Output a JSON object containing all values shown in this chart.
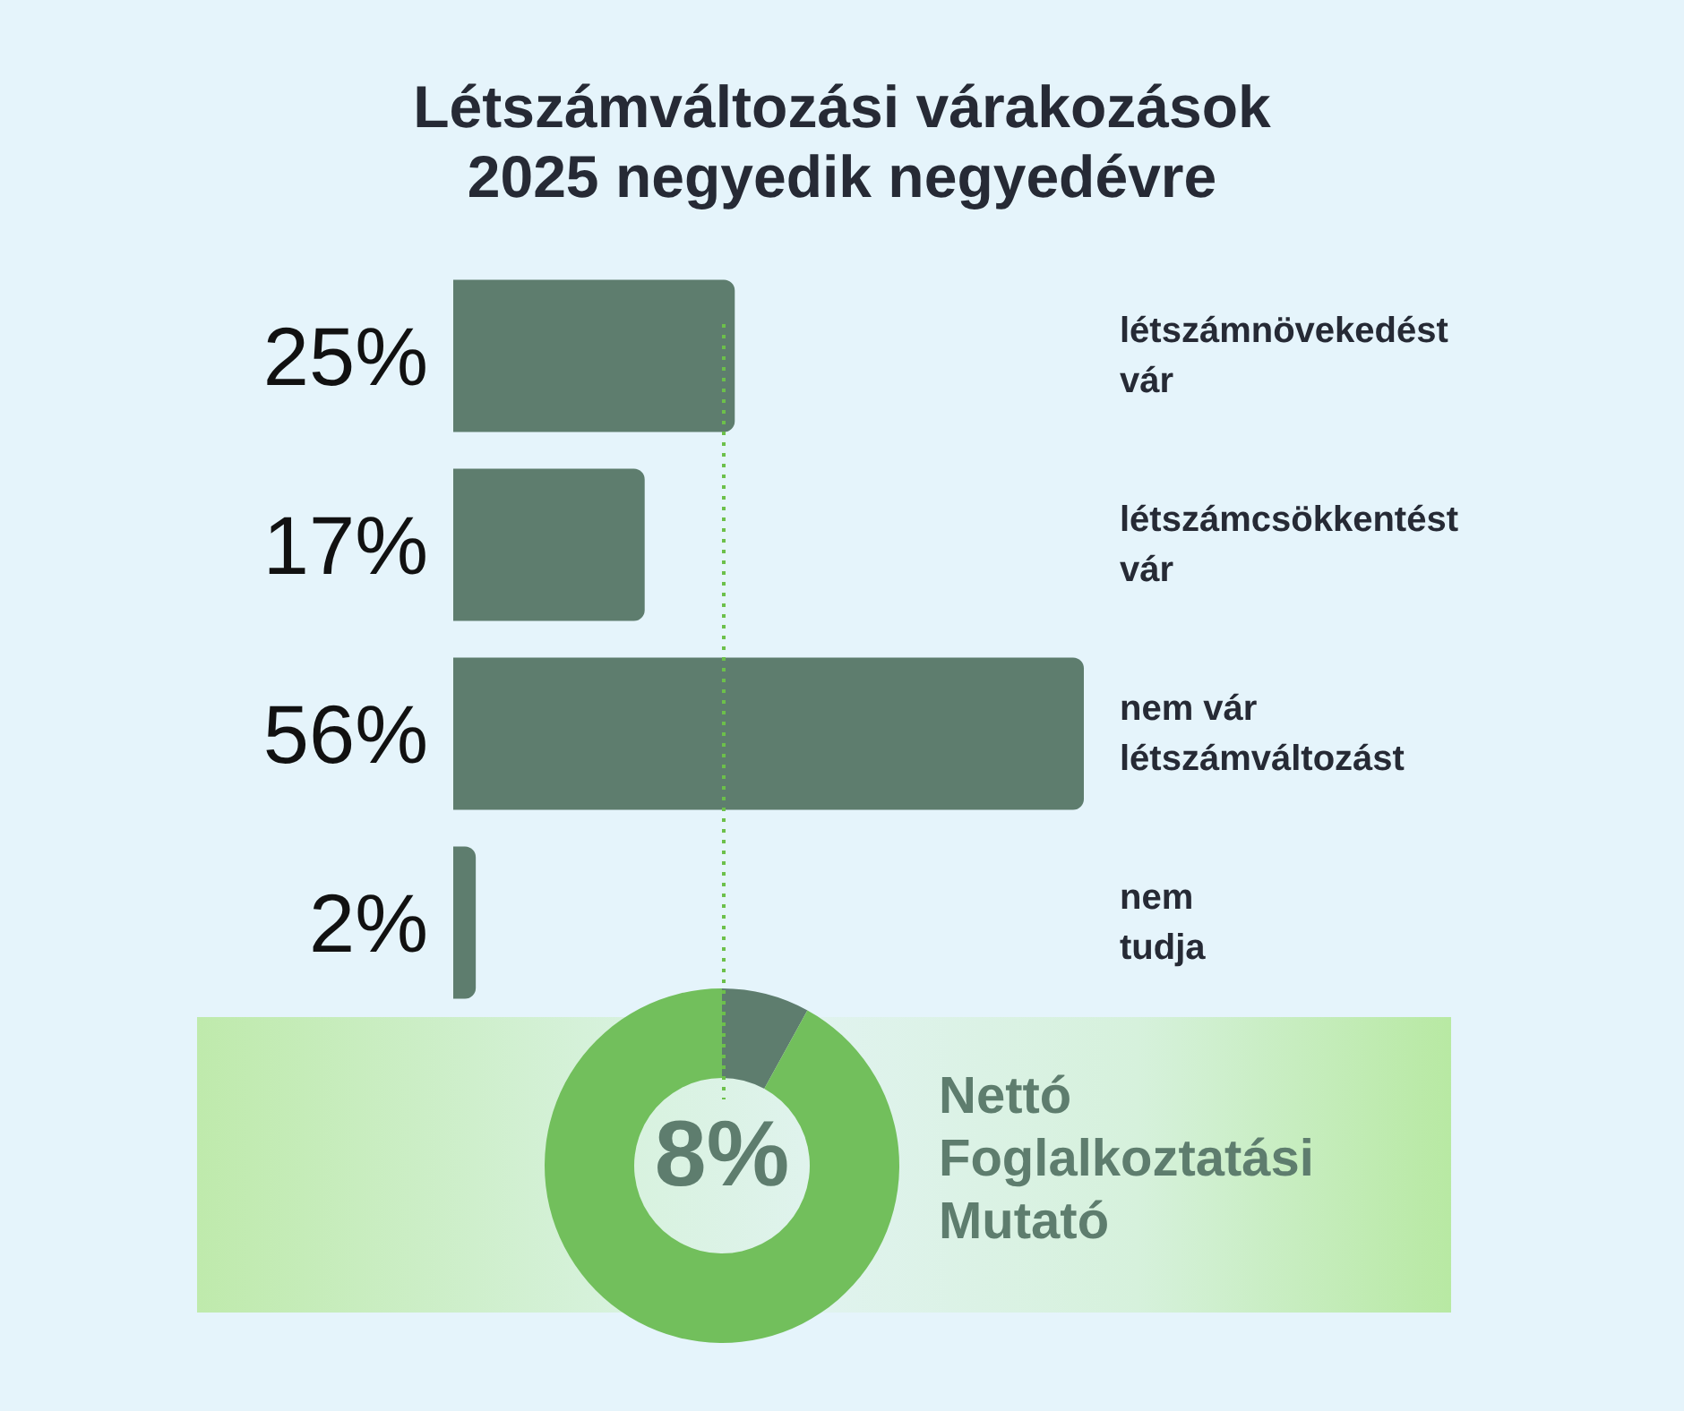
{
  "chart_data": [
    {
      "type": "bar",
      "title": "Létszámváltozási várakozások\n2025 negyedik negyedévre",
      "orientation": "horizontal",
      "categories": [
        "létszámnövekedést\nvár",
        "létszámcsökkentést\nvár",
        "nem vár\nlétszámváltozást",
        "nem\ntudja"
      ],
      "values": [
        25,
        17,
        56,
        2
      ],
      "value_labels": [
        "25%",
        "17%",
        "56%",
        "2%"
      ],
      "color": "#5e7d6e",
      "tick_labels": "y",
      "ref_lines": [
        {
          "axis": "x",
          "value": 24,
          "color": "#6cc04a",
          "line_style": "dotted"
        }
      ]
    },
    {
      "type": "donut",
      "title": "Nettó\nFoglalkoztatási\nMutató",
      "categories": [
        null,
        null
      ],
      "values": [
        8,
        92
      ],
      "value_labels": [
        "8%",
        null
      ],
      "colors": [
        "#5e7d6e",
        "#72bf5c"
      ]
    }
  ]
}
